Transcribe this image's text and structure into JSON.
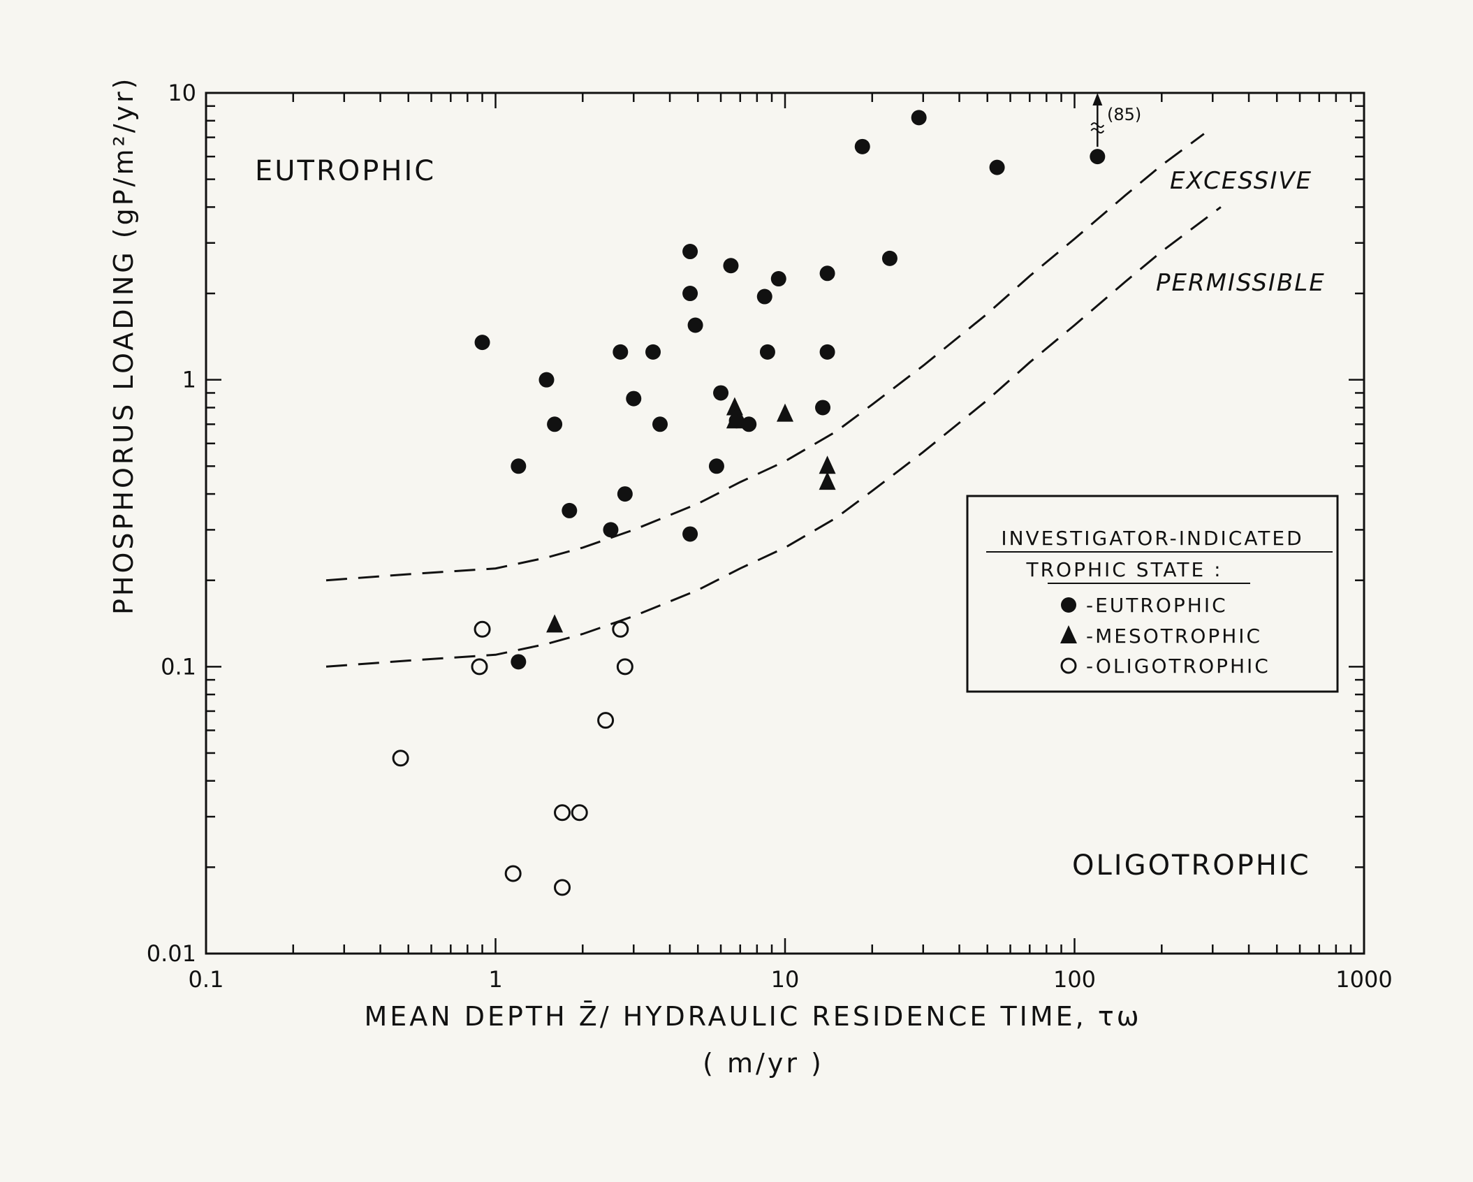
{
  "chart_data": {
    "type": "scatter",
    "title": "",
    "xlabel": "MEAN DEPTH Z̄/ HYDRAULIC RESIDENCE TIME, τω",
    "xlabel_units": "( m/yr )",
    "ylabel": "PHOSPHORUS LOADING (gP/m²/yr)",
    "x_scale": "log",
    "y_scale": "log",
    "xlim": [
      0.1,
      1000
    ],
    "ylim": [
      0.01,
      10
    ],
    "grid": false,
    "x_tick_labels": [
      "0.1",
      "1",
      "10",
      "100",
      "1000"
    ],
    "y_tick_labels": [
      "0.01",
      "0.1",
      "1",
      "10"
    ],
    "region_labels": {
      "upper_left": "EUTROPHIC",
      "lower_right": "OLIGOTROPHIC"
    },
    "legend": {
      "placement": "right",
      "title_line1": "INVESTIGATOR-INDICATED",
      "title_line2": "TROPHIC STATE :",
      "entries": [
        "-EUTROPHIC",
        "-MESOTROPHIC",
        "-OLIGOTROPHIC"
      ]
    },
    "annotation": {
      "text": "(85)",
      "x": 120,
      "y": 6
    },
    "curves": [
      {
        "name": "EXCESSIVE",
        "style": "dashed",
        "points": [
          [
            0.26,
            0.2
          ],
          [
            0.5,
            0.21
          ],
          [
            1,
            0.22
          ],
          [
            1.5,
            0.24
          ],
          [
            2,
            0.26
          ],
          [
            3,
            0.3
          ],
          [
            5,
            0.37
          ],
          [
            7,
            0.44
          ],
          [
            10,
            0.52
          ],
          [
            15,
            0.66
          ],
          [
            20,
            0.82
          ],
          [
            30,
            1.12
          ],
          [
            50,
            1.7
          ],
          [
            70,
            2.3
          ],
          [
            100,
            3.1
          ],
          [
            150,
            4.4
          ],
          [
            200,
            5.6
          ],
          [
            280,
            7.2
          ]
        ]
      },
      {
        "name": "PERMISSIBLE",
        "style": "dashed",
        "points": [
          [
            0.26,
            0.1
          ],
          [
            0.5,
            0.105
          ],
          [
            1,
            0.11
          ],
          [
            1.5,
            0.12
          ],
          [
            2,
            0.13
          ],
          [
            3,
            0.15
          ],
          [
            5,
            0.185
          ],
          [
            7,
            0.22
          ],
          [
            10,
            0.26
          ],
          [
            15,
            0.33
          ],
          [
            20,
            0.41
          ],
          [
            30,
            0.56
          ],
          [
            50,
            0.85
          ],
          [
            70,
            1.15
          ],
          [
            100,
            1.55
          ],
          [
            150,
            2.2
          ],
          [
            200,
            2.8
          ],
          [
            320,
            4.0
          ]
        ]
      }
    ],
    "series": [
      {
        "name": "EUTROPHIC",
        "marker": "filled-circle",
        "points": [
          [
            0.9,
            1.35
          ],
          [
            1.2,
            0.5
          ],
          [
            1.2,
            0.104
          ],
          [
            1.5,
            1.0
          ],
          [
            1.6,
            0.7
          ],
          [
            1.8,
            0.35
          ],
          [
            2.5,
            0.3
          ],
          [
            2.7,
            1.25
          ],
          [
            2.8,
            0.4
          ],
          [
            3.0,
            0.86
          ],
          [
            3.5,
            1.25
          ],
          [
            3.7,
            0.7
          ],
          [
            4.7,
            2.8
          ],
          [
            4.7,
            2.0
          ],
          [
            4.7,
            0.29
          ],
          [
            4.9,
            1.55
          ],
          [
            5.8,
            0.5
          ],
          [
            6.0,
            0.9
          ],
          [
            6.5,
            2.5
          ],
          [
            6.8,
            0.72
          ],
          [
            7.5,
            0.7
          ],
          [
            8.5,
            1.95
          ],
          [
            8.7,
            1.25
          ],
          [
            9.5,
            2.25
          ],
          [
            13.5,
            0.8
          ],
          [
            14,
            2.35
          ],
          [
            14,
            1.25
          ],
          [
            18.5,
            6.5
          ],
          [
            23,
            2.65
          ],
          [
            29,
            8.2
          ],
          [
            54,
            5.5
          ],
          [
            120,
            6.0
          ]
        ]
      },
      {
        "name": "MESOTROPHIC",
        "marker": "filled-triangle",
        "points": [
          [
            1.6,
            0.14
          ],
          [
            6.7,
            0.8
          ],
          [
            6.7,
            0.72
          ],
          [
            10,
            0.76
          ],
          [
            14,
            0.5
          ],
          [
            14,
            0.44
          ]
        ]
      },
      {
        "name": "OLIGOTROPHIC",
        "marker": "open-circle",
        "points": [
          [
            0.47,
            0.048
          ],
          [
            0.88,
            0.1
          ],
          [
            0.9,
            0.135
          ],
          [
            1.15,
            0.019
          ],
          [
            1.7,
            0.031
          ],
          [
            1.7,
            0.017
          ],
          [
            1.95,
            0.031
          ],
          [
            2.4,
            0.065
          ],
          [
            2.7,
            0.135
          ],
          [
            2.8,
            0.1
          ]
        ]
      }
    ]
  }
}
